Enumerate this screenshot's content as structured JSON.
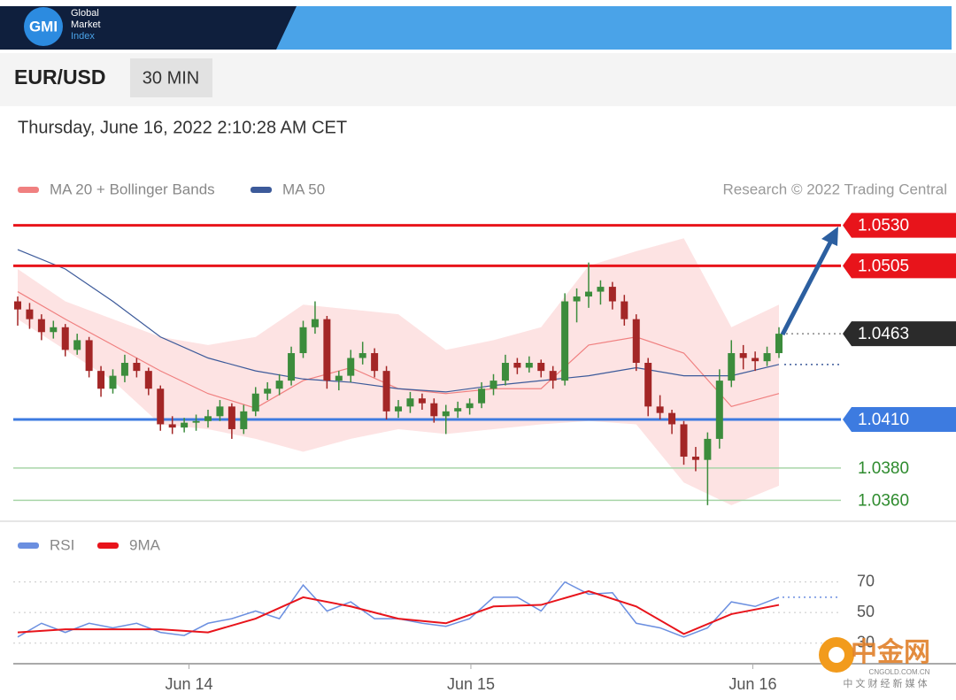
{
  "header": {
    "logo": "GMI",
    "brand": [
      "Global",
      "Market",
      "Index"
    ]
  },
  "toolbar": {
    "symbol": "EUR/USD",
    "interval": "30 MIN"
  },
  "timestamp": "Thursday, June 16, 2022 2:10:28 AM CET",
  "credit": "Research © 2022 Trading Central",
  "watermark": {
    "name": "中金网",
    "site": "CNGOLD.COM.CN",
    "slogan": "中 文 财 经 新 媒 体"
  },
  "chart_data": [
    {
      "type": "candlestick",
      "xlim": [
        0,
        64
      ],
      "ylim": [
        1.0352,
        1.0538
      ],
      "up_color": "#3c8c3c",
      "down_color": "#a32626",
      "candles": [
        [
          1.0483,
          1.0486,
          1.0468,
          1.0478
        ],
        [
          1.0478,
          1.0482,
          1.0466,
          1.0472
        ],
        [
          1.0472,
          1.0475,
          1.0459,
          1.0464
        ],
        [
          1.0464,
          1.0471,
          1.046,
          1.0467
        ],
        [
          1.0467,
          1.0469,
          1.0449,
          1.0453
        ],
        [
          1.0453,
          1.0463,
          1.045,
          1.0459
        ],
        [
          1.0459,
          1.0461,
          1.0436,
          1.044
        ],
        [
          1.044,
          1.0443,
          1.0424,
          1.0429
        ],
        [
          1.0429,
          1.0441,
          1.0426,
          1.0437
        ],
        [
          1.0437,
          1.045,
          1.0433,
          1.0445
        ],
        [
          1.0445,
          1.0448,
          1.0436,
          1.044
        ],
        [
          1.044,
          1.0442,
          1.0425,
          1.0429
        ],
        [
          1.0429,
          1.0431,
          1.0403,
          1.0407
        ],
        [
          1.0407,
          1.0412,
          1.0401,
          1.0405
        ],
        [
          1.0405,
          1.0411,
          1.0402,
          1.0408
        ],
        [
          1.0408,
          1.0413,
          1.0403,
          1.0409
        ],
        [
          1.0409,
          1.0416,
          1.0405,
          1.0412
        ],
        [
          1.0412,
          1.0422,
          1.0409,
          1.0418
        ],
        [
          1.0418,
          1.042,
          1.0398,
          1.0404
        ],
        [
          1.0404,
          1.0419,
          1.0401,
          1.0415
        ],
        [
          1.0415,
          1.043,
          1.0412,
          1.0426
        ],
        [
          1.0426,
          1.0433,
          1.0422,
          1.0429
        ],
        [
          1.0429,
          1.0438,
          1.0425,
          1.0434
        ],
        [
          1.0434,
          1.0455,
          1.0431,
          1.0451
        ],
        [
          1.0451,
          1.0471,
          1.0448,
          1.0467
        ],
        [
          1.0467,
          1.0483,
          1.0463,
          1.0472
        ],
        [
          1.0472,
          1.0474,
          1.0429,
          1.0434
        ],
        [
          1.0434,
          1.044,
          1.0428,
          1.0437
        ],
        [
          1.0437,
          1.0453,
          1.0433,
          1.0448
        ],
        [
          1.0448,
          1.0458,
          1.0444,
          1.0451
        ],
        [
          1.0451,
          1.0454,
          1.0436,
          1.044
        ],
        [
          1.044,
          1.0443,
          1.041,
          1.0415
        ],
        [
          1.0415,
          1.0422,
          1.0411,
          1.0418
        ],
        [
          1.0418,
          1.0427,
          1.0414,
          1.0423
        ],
        [
          1.0423,
          1.0426,
          1.0416,
          1.042
        ],
        [
          1.042,
          1.0423,
          1.0408,
          1.0412
        ],
        [
          1.0412,
          1.0419,
          1.0401,
          1.0415
        ],
        [
          1.0415,
          1.0421,
          1.0411,
          1.0417
        ],
        [
          1.0417,
          1.0423,
          1.0413,
          1.042
        ],
        [
          1.042,
          1.0433,
          1.0417,
          1.0429
        ],
        [
          1.0429,
          1.0438,
          1.0425,
          1.0434
        ],
        [
          1.0434,
          1.045,
          1.0431,
          1.0445
        ],
        [
          1.0445,
          1.0448,
          1.0438,
          1.0442
        ],
        [
          1.0442,
          1.0449,
          1.0439,
          1.0445
        ],
        [
          1.0445,
          1.0447,
          1.0436,
          1.044
        ],
        [
          1.044,
          1.0443,
          1.0429,
          1.0434
        ],
        [
          1.0434,
          1.0488,
          1.0431,
          1.0483
        ],
        [
          1.0483,
          1.0491,
          1.047,
          1.0486
        ],
        [
          1.0486,
          1.0507,
          1.0479,
          1.0489
        ],
        [
          1.0489,
          1.0496,
          1.0481,
          1.0492
        ],
        [
          1.0492,
          1.0495,
          1.0478,
          1.0483
        ],
        [
          1.0483,
          1.0487,
          1.0468,
          1.0472
        ],
        [
          1.0472,
          1.0475,
          1.044,
          1.0445
        ],
        [
          1.0445,
          1.0448,
          1.0412,
          1.0418
        ],
        [
          1.0418,
          1.0425,
          1.041,
          1.0414
        ],
        [
          1.0414,
          1.0416,
          1.0401,
          1.0407
        ],
        [
          1.0407,
          1.0409,
          1.0382,
          1.0387
        ],
        [
          1.0387,
          1.0393,
          1.0378,
          1.0385
        ],
        [
          1.0385,
          1.0402,
          1.0357,
          1.0398
        ],
        [
          1.0398,
          1.0441,
          1.0392,
          1.0434
        ],
        [
          1.0434,
          1.0459,
          1.043,
          1.0451
        ],
        [
          1.0451,
          1.0456,
          1.0441,
          1.0448
        ],
        [
          1.0448,
          1.0452,
          1.044,
          1.0446
        ],
        [
          1.0446,
          1.0455,
          1.0443,
          1.0451
        ],
        [
          1.0451,
          1.0467,
          1.0448,
          1.0463
        ]
      ],
      "overlays": [
        {
          "name": "MA 20 + Bollinger Bands",
          "color": "#f08080",
          "band_color": "#fde3e3",
          "x": [
            0,
            4,
            8,
            12,
            16,
            20,
            24,
            28,
            32,
            36,
            40,
            44,
            48,
            52,
            56,
            60,
            64
          ],
          "upper": [
            1.0503,
            1.0483,
            1.0472,
            1.0461,
            1.0456,
            1.0461,
            1.0481,
            1.0478,
            1.0475,
            1.0453,
            1.0459,
            1.0467,
            1.0505,
            1.0514,
            1.0522,
            1.0467,
            1.0481
          ],
          "values": [
            1.0489,
            1.0472,
            1.0456,
            1.044,
            1.0426,
            1.0417,
            1.0434,
            1.0442,
            1.0429,
            1.0426,
            1.0429,
            1.0429,
            1.0456,
            1.0461,
            1.0451,
            1.0418,
            1.0426
          ],
          "lower": [
            1.0472,
            1.0453,
            1.0434,
            1.0407,
            1.0404,
            1.0398,
            1.039,
            1.0398,
            1.0404,
            1.0401,
            1.0404,
            1.0407,
            1.0409,
            1.0407,
            1.0371,
            1.0357,
            1.0369
          ]
        },
        {
          "name": "MA 50",
          "color": "#3c5a9a",
          "x": [
            0,
            4,
            8,
            12,
            16,
            20,
            24,
            28,
            32,
            36,
            40,
            44,
            48,
            52,
            56,
            60,
            64
          ],
          "values": [
            1.0515,
            1.0503,
            1.0483,
            1.0461,
            1.0448,
            1.044,
            1.0435,
            1.0433,
            1.0429,
            1.0427,
            1.0431,
            1.0434,
            1.0437,
            1.0442,
            1.0437,
            1.0437,
            1.0444
          ]
        }
      ],
      "levels": [
        {
          "value": 1.053,
          "label": "1.0530",
          "color": "#e8141b",
          "style": "solid",
          "box": true
        },
        {
          "value": 1.0505,
          "label": "1.0505",
          "color": "#e8141b",
          "style": "solid",
          "box": true
        },
        {
          "value": 1.0463,
          "label": "1.0463",
          "color": "#2b2b2b",
          "style": "dotted",
          "box": true
        },
        {
          "value": 1.041,
          "label": "1.0410",
          "color": "#3d7be0",
          "style": "solid",
          "box": true
        },
        {
          "value": 1.038,
          "label": "1.0380",
          "color": "#2e8b2e",
          "style": "thin",
          "box": false
        },
        {
          "value": 1.036,
          "label": "1.0360",
          "color": "#2e8b2e",
          "style": "thin",
          "box": false
        }
      ]
    },
    {
      "type": "line",
      "xlim": [
        0,
        64
      ],
      "ylim": [
        20,
        75
      ],
      "yticks": [
        30,
        50,
        70
      ],
      "grid": true,
      "xticks": [
        {
          "value": 14.4,
          "label": "Jun 14"
        },
        {
          "value": 38.1,
          "label": "Jun 15"
        },
        {
          "value": 61.8,
          "label": "Jun 16"
        }
      ],
      "series": [
        {
          "name": "RSI",
          "color": "#6b8fe0",
          "x": [
            0,
            2,
            4,
            6,
            8,
            10,
            12,
            14,
            16,
            18,
            20,
            22,
            24,
            26,
            28,
            30,
            32,
            34,
            36,
            38,
            40,
            42,
            44,
            46,
            48,
            50,
            52,
            54,
            56,
            58,
            60,
            62,
            64
          ],
          "values": [
            34,
            43,
            37,
            43,
            40,
            43,
            37,
            35,
            43,
            46,
            51,
            46,
            68,
            51,
            57,
            46,
            46,
            43,
            41,
            46,
            60,
            60,
            51,
            70,
            62,
            63,
            43,
            40,
            34,
            40,
            57,
            54,
            60
          ]
        },
        {
          "name": "9MA",
          "color": "#e8141b",
          "x": [
            0,
            4,
            8,
            12,
            16,
            20,
            24,
            28,
            32,
            36,
            40,
            44,
            48,
            52,
            56,
            60,
            64
          ],
          "values": [
            37,
            39,
            39,
            39,
            37,
            46,
            60,
            54,
            46,
            43,
            54,
            55,
            64,
            54,
            36,
            49,
            55
          ]
        }
      ]
    }
  ]
}
